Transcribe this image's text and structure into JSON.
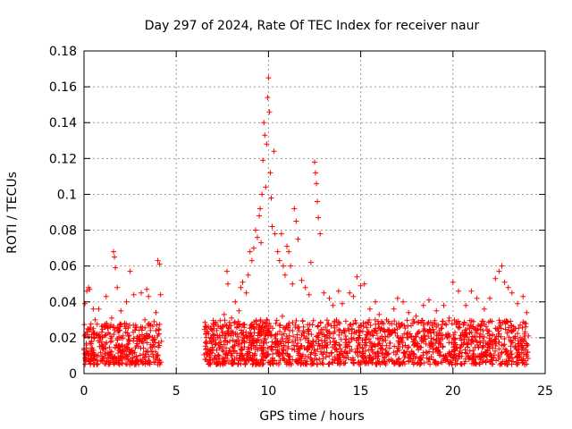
{
  "chart_data": {
    "type": "scatter",
    "title": "Day 297 of 2024, Rate Of TEC Index for receiver naur",
    "xlabel": "GPS time / hours",
    "ylabel": "ROTI / TECUs",
    "xlim": [
      0,
      25
    ],
    "ylim": [
      0,
      0.18
    ],
    "xticks": [
      0,
      5,
      10,
      15,
      20,
      25
    ],
    "yticks": [
      0,
      0.02,
      0.04,
      0.06,
      0.08,
      0.1,
      0.12,
      0.14,
      0.16,
      0.18
    ],
    "xtick_labels": [
      "0",
      "5",
      "10",
      "15",
      "20",
      "25"
    ],
    "ytick_labels": [
      "0",
      "0.02",
      "0.04",
      "0.06",
      "0.08",
      "0.1",
      "0.12",
      "0.14",
      "0.16",
      "0.18"
    ],
    "grid": true,
    "marker": "+",
    "color": "#ff0000",
    "series": [
      {
        "points": [
          [
            0.05,
            0.039
          ],
          [
            0.15,
            0.046
          ],
          [
            0.25,
            0.048
          ],
          [
            0.3,
            0.047
          ],
          [
            0.5,
            0.036
          ],
          [
            0.8,
            0.036
          ],
          [
            1.2,
            0.043
          ],
          [
            1.6,
            0.068
          ],
          [
            1.65,
            0.065
          ],
          [
            1.7,
            0.059
          ],
          [
            1.8,
            0.048
          ],
          [
            2.0,
            0.035
          ],
          [
            2.3,
            0.04
          ],
          [
            2.5,
            0.057
          ],
          [
            2.7,
            0.044
          ],
          [
            3.1,
            0.045
          ],
          [
            3.4,
            0.047
          ],
          [
            3.5,
            0.043
          ],
          [
            3.9,
            0.034
          ],
          [
            4.0,
            0.063
          ],
          [
            4.1,
            0.061
          ],
          [
            4.15,
            0.044
          ],
          [
            0.1,
            0.012
          ],
          [
            0.2,
            0.025
          ],
          [
            0.4,
            0.018
          ],
          [
            0.6,
            0.03
          ],
          [
            0.7,
            0.01
          ],
          [
            0.9,
            0.02
          ],
          [
            1.0,
            0.014
          ],
          [
            1.1,
            0.026
          ],
          [
            1.3,
            0.009
          ],
          [
            1.4,
            0.022
          ],
          [
            1.5,
            0.031
          ],
          [
            1.75,
            0.016
          ],
          [
            1.9,
            0.024
          ],
          [
            2.1,
            0.011
          ],
          [
            2.2,
            0.028
          ],
          [
            2.4,
            0.019
          ],
          [
            2.6,
            0.013
          ],
          [
            2.8,
            0.027
          ],
          [
            2.9,
            0.008
          ],
          [
            3.0,
            0.021
          ],
          [
            3.2,
            0.017
          ],
          [
            3.3,
            0.03
          ],
          [
            3.45,
            0.012
          ],
          [
            3.6,
            0.024
          ],
          [
            3.7,
            0.015
          ],
          [
            3.8,
            0.029
          ],
          [
            3.95,
            0.01
          ],
          [
            4.05,
            0.022
          ],
          [
            4.2,
            0.018
          ],
          [
            6.6,
            0.022
          ],
          [
            6.8,
            0.018
          ],
          [
            7.0,
            0.028
          ],
          [
            7.2,
            0.024
          ],
          [
            7.4,
            0.026
          ],
          [
            7.6,
            0.033
          ],
          [
            7.75,
            0.057
          ],
          [
            7.8,
            0.05
          ],
          [
            8.0,
            0.031
          ],
          [
            8.2,
            0.04
          ],
          [
            8.4,
            0.035
          ],
          [
            8.5,
            0.048
          ],
          [
            8.6,
            0.051
          ],
          [
            8.8,
            0.045
          ],
          [
            8.9,
            0.055
          ],
          [
            9.0,
            0.068
          ],
          [
            9.1,
            0.063
          ],
          [
            9.2,
            0.07
          ],
          [
            9.3,
            0.08
          ],
          [
            9.4,
            0.076
          ],
          [
            9.5,
            0.088
          ],
          [
            9.55,
            0.092
          ],
          [
            9.6,
            0.073
          ],
          [
            9.65,
            0.1
          ],
          [
            9.7,
            0.119
          ],
          [
            9.75,
            0.14
          ],
          [
            9.8,
            0.133
          ],
          [
            9.85,
            0.104
          ],
          [
            9.9,
            0.128
          ],
          [
            9.95,
            0.154
          ],
          [
            10.0,
            0.165
          ],
          [
            10.05,
            0.146
          ],
          [
            10.1,
            0.112
          ],
          [
            10.15,
            0.098
          ],
          [
            10.2,
            0.082
          ],
          [
            10.3,
            0.124
          ],
          [
            10.35,
            0.078
          ],
          [
            10.5,
            0.068
          ],
          [
            10.6,
            0.063
          ],
          [
            10.7,
            0.078
          ],
          [
            10.8,
            0.06
          ],
          [
            10.9,
            0.055
          ],
          [
            11.0,
            0.071
          ],
          [
            11.1,
            0.068
          ],
          [
            11.2,
            0.06
          ],
          [
            11.3,
            0.05
          ],
          [
            11.4,
            0.092
          ],
          [
            11.5,
            0.085
          ],
          [
            11.6,
            0.075
          ],
          [
            11.8,
            0.052
          ],
          [
            12.0,
            0.048
          ],
          [
            12.2,
            0.044
          ],
          [
            12.3,
            0.062
          ],
          [
            12.5,
            0.118
          ],
          [
            12.55,
            0.112
          ],
          [
            12.6,
            0.106
          ],
          [
            12.65,
            0.096
          ],
          [
            12.7,
            0.087
          ],
          [
            12.8,
            0.078
          ],
          [
            13.0,
            0.045
          ],
          [
            13.3,
            0.042
          ],
          [
            13.5,
            0.038
          ],
          [
            13.8,
            0.046
          ],
          [
            14.0,
            0.039
          ],
          [
            14.4,
            0.045
          ],
          [
            14.6,
            0.043
          ],
          [
            14.8,
            0.054
          ],
          [
            15.0,
            0.049
          ],
          [
            15.2,
            0.05
          ],
          [
            15.5,
            0.036
          ],
          [
            15.8,
            0.04
          ],
          [
            16.0,
            0.033
          ],
          [
            16.4,
            0.03
          ],
          [
            16.8,
            0.036
          ],
          [
            17.0,
            0.042
          ],
          [
            17.3,
            0.04
          ],
          [
            17.6,
            0.034
          ],
          [
            18.0,
            0.032
          ],
          [
            18.4,
            0.038
          ],
          [
            18.7,
            0.041
          ],
          [
            19.1,
            0.035
          ],
          [
            19.5,
            0.038
          ],
          [
            19.8,
            0.031
          ],
          [
            20.0,
            0.051
          ],
          [
            20.3,
            0.046
          ],
          [
            20.7,
            0.038
          ],
          [
            21.0,
            0.046
          ],
          [
            21.3,
            0.042
          ],
          [
            21.7,
            0.036
          ],
          [
            22.0,
            0.042
          ],
          [
            22.3,
            0.053
          ],
          [
            22.5,
            0.057
          ],
          [
            22.65,
            0.06
          ],
          [
            22.8,
            0.051
          ],
          [
            23.0,
            0.048
          ],
          [
            23.2,
            0.045
          ],
          [
            23.5,
            0.039
          ],
          [
            23.8,
            0.043
          ],
          [
            24.0,
            0.034
          ],
          [
            6.7,
            0.012
          ],
          [
            6.9,
            0.02
          ],
          [
            7.1,
            0.01
          ],
          [
            7.3,
            0.016
          ],
          [
            7.5,
            0.013
          ],
          [
            7.7,
            0.021
          ],
          [
            7.9,
            0.018
          ],
          [
            8.1,
            0.015
          ],
          [
            8.3,
            0.022
          ],
          [
            8.7,
            0.017
          ],
          [
            9.25,
            0.025
          ],
          [
            9.45,
            0.019
          ],
          [
            9.9,
            0.03
          ],
          [
            10.4,
            0.028
          ],
          [
            10.75,
            0.032
          ],
          [
            11.15,
            0.024
          ],
          [
            11.55,
            0.02
          ],
          [
            11.9,
            0.026
          ],
          [
            12.4,
            0.018
          ],
          [
            12.9,
            0.022
          ],
          [
            13.2,
            0.016
          ],
          [
            13.6,
            0.014
          ],
          [
            14.2,
            0.019
          ],
          [
            14.7,
            0.012
          ],
          [
            15.1,
            0.01
          ],
          [
            15.6,
            0.015
          ],
          [
            16.2,
            0.011
          ],
          [
            16.6,
            0.017
          ],
          [
            17.1,
            0.013
          ],
          [
            17.5,
            0.02
          ],
          [
            17.9,
            0.016
          ],
          [
            18.3,
            0.009
          ],
          [
            18.8,
            0.018
          ],
          [
            19.3,
            0.012
          ],
          [
            19.7,
            0.021
          ],
          [
            20.2,
            0.014
          ],
          [
            20.6,
            0.019
          ],
          [
            21.1,
            0.011
          ],
          [
            21.5,
            0.022
          ],
          [
            21.9,
            0.016
          ],
          [
            22.4,
            0.025
          ],
          [
            22.9,
            0.013
          ],
          [
            23.3,
            0.02
          ],
          [
            23.7,
            0.015
          ],
          [
            24.05,
            0.012
          ]
        ]
      }
    ],
    "band_segments": [
      {
        "x_start": 0,
        "x_end": 4.2,
        "y_low": 0.005,
        "y_high": 0.028
      },
      {
        "x_start": 6.5,
        "x_end": 24.1,
        "y_low": 0.005,
        "y_high": 0.03
      }
    ]
  }
}
